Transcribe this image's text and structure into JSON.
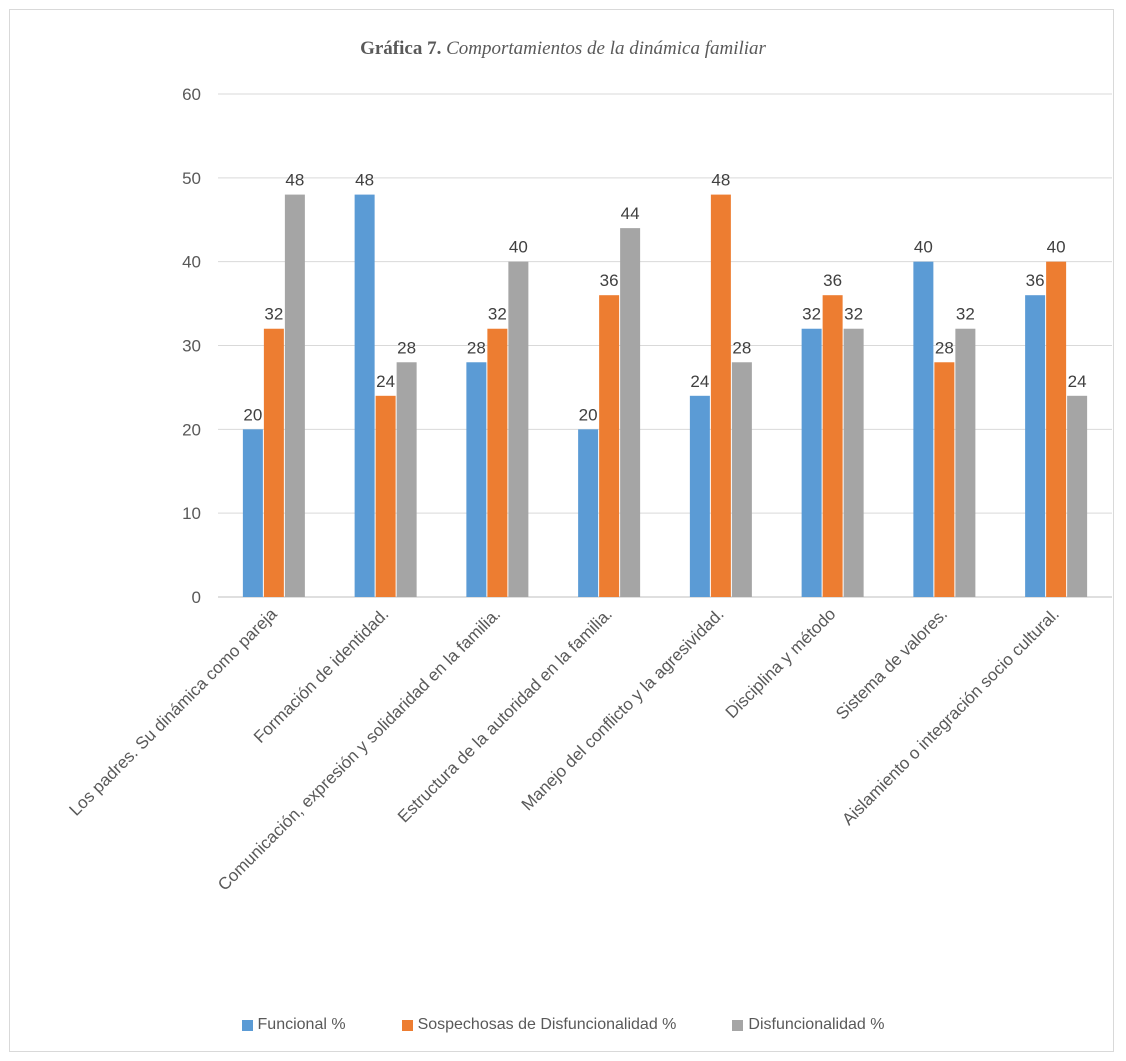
{
  "chart_data": {
    "type": "bar",
    "title_bold": "Gráfica 7.",
    "title_italic": "Comportamientos de la dinámica familiar",
    "categories": [
      "Los padres. Su dinámica como pareja",
      "Formación de identidad.",
      "Comunicación, expresión y solidaridad en la familia.",
      "Estructura de la autoridad en la familia.",
      "Manejo del conflicto y la agresividad.",
      "Disciplina y método",
      "Sistema de valores.",
      "Aislamiento o integración socio cultural."
    ],
    "series": [
      {
        "name": "Funcional %",
        "color": "#5b9bd5",
        "values": [
          20,
          48,
          28,
          20,
          24,
          32,
          40,
          36
        ]
      },
      {
        "name": "Sospechosas de Disfuncionalidad %",
        "color": "#ed7d31",
        "values": [
          32,
          24,
          32,
          36,
          48,
          36,
          28,
          40
        ]
      },
      {
        "name": "Disfuncionalidad %",
        "color": "#a5a5a5",
        "values": [
          48,
          28,
          40,
          44,
          28,
          32,
          32,
          24
        ]
      }
    ],
    "ylim": [
      0,
      60
    ],
    "yticks": [
      0,
      10,
      20,
      30,
      40,
      50,
      60
    ],
    "grid": true,
    "legend_position": "bottom",
    "data_labels": true
  }
}
